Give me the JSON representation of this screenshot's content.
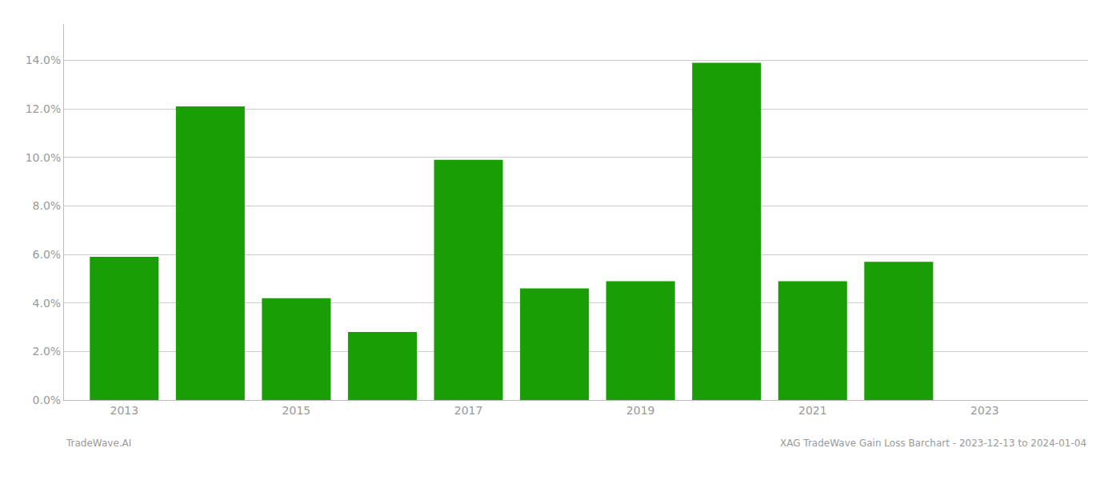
{
  "chart_data": {
    "type": "bar",
    "x": [
      2013,
      2014,
      2015,
      2016,
      2017,
      2018,
      2019,
      2020,
      2021,
      2022,
      2023
    ],
    "values": [
      0.059,
      0.121,
      0.042,
      0.028,
      0.099,
      0.046,
      0.049,
      0.139,
      0.049,
      0.057,
      0.0
    ],
    "color": "#1a9e06",
    "xlim": [
      2012.3,
      2024.2
    ],
    "xticks": [
      2013,
      2015,
      2017,
      2019,
      2021,
      2023
    ],
    "ylim": [
      0,
      0.155
    ],
    "yticks": [
      {
        "value": 0.0,
        "label": "0.0%"
      },
      {
        "value": 0.02,
        "label": "2.0%"
      },
      {
        "value": 0.04,
        "label": "4.0%"
      },
      {
        "value": 0.06,
        "label": "6.0%"
      },
      {
        "value": 0.08,
        "label": "8.0%"
      },
      {
        "value": 0.1,
        "label": "10.0%"
      },
      {
        "value": 0.12,
        "label": "12.0%"
      },
      {
        "value": 0.14,
        "label": "14.0%"
      }
    ],
    "grid": true,
    "annotations": [
      "TradeWave.AI",
      "XAG TradeWave Gain Loss Barchart - 2023-12-13 to 2024-01-04"
    ]
  }
}
